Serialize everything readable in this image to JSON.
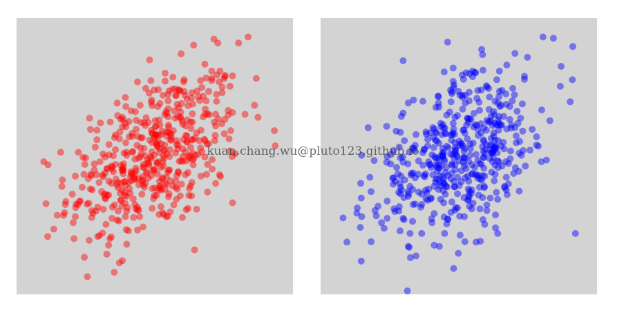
{
  "watermark": "kuan.chang.wu@pluto123.github.io",
  "colors": {
    "panel_bg": "#d3d3d3",
    "page_bg": "#ffffff",
    "left_points": "#ff0000",
    "right_points": "#0000ff"
  },
  "chart_data": [
    {
      "type": "scatter",
      "title": "",
      "xlabel": "",
      "ylabel": "",
      "axes": "hidden",
      "grid": false,
      "color": "#ff0000",
      "opacity": 0.45,
      "xlim": [
        -3.2,
        3.2
      ],
      "ylim": [
        -3.2,
        3.2
      ],
      "points": []
    },
    {
      "type": "scatter",
      "title": "",
      "xlabel": "",
      "ylabel": "",
      "axes": "hidden",
      "grid": false,
      "color": "#0000ff",
      "opacity": 0.45,
      "xlim": [
        -3.2,
        3.2
      ],
      "ylim": [
        -3.2,
        3.2
      ],
      "points": []
    }
  ]
}
